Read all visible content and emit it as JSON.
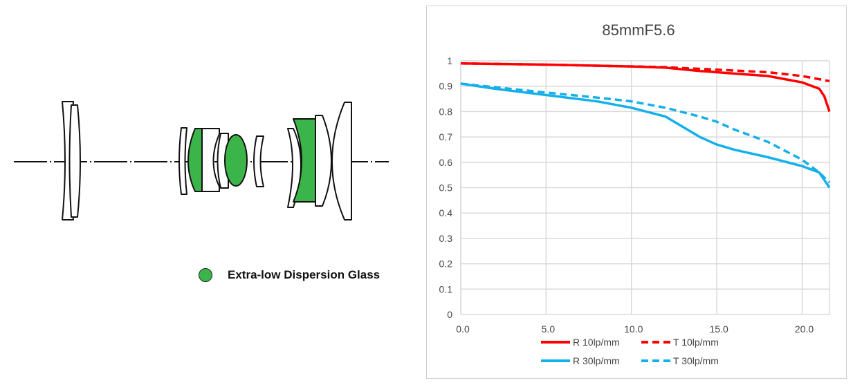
{
  "diagram": {
    "legend_label": "Extra-low Dispersion Glass",
    "ed_glass_color": "#3bb54a"
  },
  "chart_data": {
    "type": "line",
    "title": "85mmF5.6",
    "xlabel": "",
    "ylabel": "",
    "xlim": [
      0,
      21.6
    ],
    "ylim": [
      0,
      1
    ],
    "grid": true,
    "legend_position": "bottom",
    "x_ticks": [
      "0.0",
      "5.0",
      "10.0",
      "15.0",
      "20.0"
    ],
    "x_tick_values": [
      0,
      5,
      10,
      15,
      20
    ],
    "y_ticks": [
      "0",
      "0.1",
      "0.2",
      "0.3",
      "0.4",
      "0.5",
      "0.6",
      "0.7",
      "0.8",
      "0.9",
      "1"
    ],
    "y_tick_values": [
      0,
      0.1,
      0.2,
      0.3,
      0.4,
      0.5,
      0.6,
      0.7,
      0.8,
      0.9,
      1
    ],
    "series": [
      {
        "name": "R 10lp/mm",
        "color": "#ff0000",
        "dash": false,
        "x": [
          0,
          5,
          10,
          12,
          14,
          16,
          18,
          20,
          21,
          21.3,
          21.6
        ],
        "y": [
          0.99,
          0.985,
          0.978,
          0.973,
          0.96,
          0.95,
          0.94,
          0.915,
          0.89,
          0.86,
          0.8
        ]
      },
      {
        "name": "T 10lp/mm",
        "color": "#ff0000",
        "dash": true,
        "x": [
          0,
          5,
          10,
          12,
          15,
          18,
          20,
          21.6
        ],
        "y": [
          0.99,
          0.985,
          0.978,
          0.975,
          0.965,
          0.955,
          0.94,
          0.92
        ]
      },
      {
        "name": "R 30lp/mm",
        "color": "#15b0ea",
        "dash": false,
        "x": [
          0,
          2,
          5,
          8,
          10,
          12,
          13,
          14,
          15,
          16,
          18,
          20,
          21,
          21.6
        ],
        "y": [
          0.91,
          0.89,
          0.865,
          0.84,
          0.815,
          0.78,
          0.74,
          0.7,
          0.67,
          0.65,
          0.62,
          0.585,
          0.56,
          0.5
        ]
      },
      {
        "name": "T 30lp/mm",
        "color": "#15b0ea",
        "dash": true,
        "x": [
          0,
          5,
          8,
          10,
          12,
          14,
          15,
          16,
          18,
          20,
          21,
          21.6
        ],
        "y": [
          0.91,
          0.875,
          0.855,
          0.84,
          0.815,
          0.78,
          0.76,
          0.73,
          0.68,
          0.61,
          0.56,
          0.52
        ]
      }
    ]
  }
}
